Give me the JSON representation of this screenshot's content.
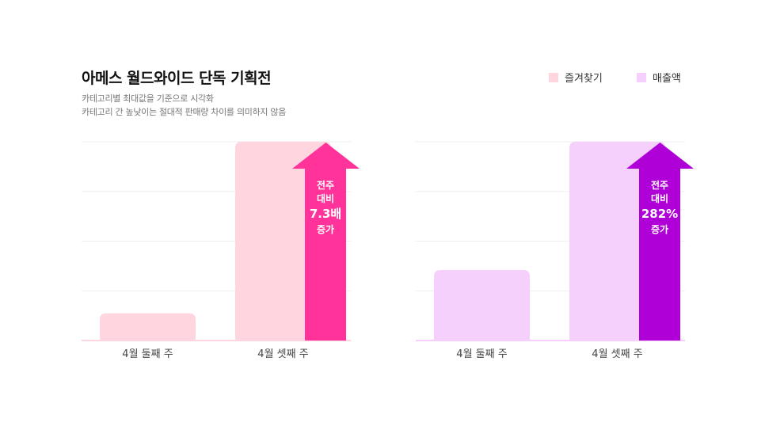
{
  "header": {
    "title": "아메스 월드와이드 단독 기획전",
    "subtitle_1": "카테고리별 최대값을 기준으로 시각화",
    "subtitle_2": "카테고리 간 높낮이는 절대적 판매량 차이를 의미하지 않음"
  },
  "legend": {
    "items": [
      {
        "label": "즐겨찾기",
        "color": "#ffd6df"
      },
      {
        "label": "매출액",
        "color": "#f5d0fc"
      }
    ]
  },
  "chart_data": [
    {
      "type": "bar",
      "series_name": "즐겨찾기",
      "categories": [
        "4월 둘째 주",
        "4월 셋째 주"
      ],
      "values": [
        1,
        7.3
      ],
      "bar_color": "#ffd6df",
      "arrow_color": "#ff3399",
      "annotation": {
        "line1": "전주",
        "line2": "대비",
        "value": "7.3배",
        "line4": "증가"
      }
    },
    {
      "type": "bar",
      "series_name": "매출액",
      "categories": [
        "4월 둘째 주",
        "4월 셋째 주"
      ],
      "values": [
        1,
        2.82
      ],
      "bar_color": "#f5d0fc",
      "arrow_color": "#b000d8",
      "annotation": {
        "line1": "전주",
        "line2": "대비",
        "value": "282%",
        "line4": "증가"
      }
    }
  ]
}
